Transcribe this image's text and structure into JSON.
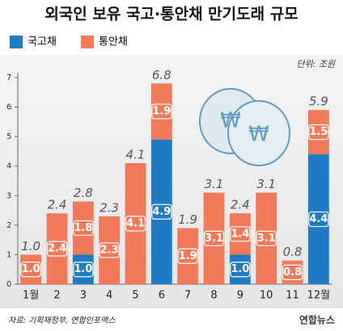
{
  "chart_data": {
    "type": "bar",
    "stacked": true,
    "title": "외국인 보유 국고·통안채 만기도래 규모",
    "unit": "단위: 조원",
    "source": "자료: 기획재정부, 연합인포맥스",
    "logo": "연합뉴스",
    "categories": [
      "1월",
      "2",
      "3",
      "4",
      "5",
      "6",
      "7",
      "8",
      "9",
      "10",
      "11",
      "12월"
    ],
    "series": [
      {
        "name": "국고채",
        "color": "#1f7cc4",
        "values": [
          0,
          0,
          1.0,
          0,
          0,
          4.9,
          0,
          0,
          1.0,
          0,
          0,
          4.4
        ],
        "value_labels": [
          null,
          null,
          "1.0",
          null,
          null,
          "4.9",
          null,
          null,
          "1.0",
          null,
          null,
          "4.4"
        ]
      },
      {
        "name": "통안채",
        "color": "#f07a5a",
        "values": [
          1.0,
          2.4,
          1.8,
          2.3,
          4.1,
          1.9,
          1.9,
          3.1,
          1.4,
          3.1,
          0.8,
          1.5
        ],
        "value_labels": [
          "1.0",
          "2.4",
          "1.8",
          "2.3",
          "4.1",
          "1.9",
          "1.9",
          "3.1",
          "1.4",
          "3.1",
          "0.8",
          "1.5"
        ]
      }
    ],
    "totals": [
      1.0,
      2.4,
      2.8,
      2.3,
      4.1,
      6.8,
      1.9,
      3.1,
      2.4,
      3.1,
      0.8,
      5.9
    ],
    "total_labels": [
      "1.0",
      "2.4",
      "2.8",
      "2.3",
      "4.1",
      "6.8",
      "1.9",
      "3.1",
      "2.4",
      "3.1",
      "0.8",
      "5.9"
    ],
    "ylim": [
      0,
      7
    ],
    "yticks": [
      0,
      1,
      2,
      3,
      4,
      5,
      6,
      7
    ]
  }
}
